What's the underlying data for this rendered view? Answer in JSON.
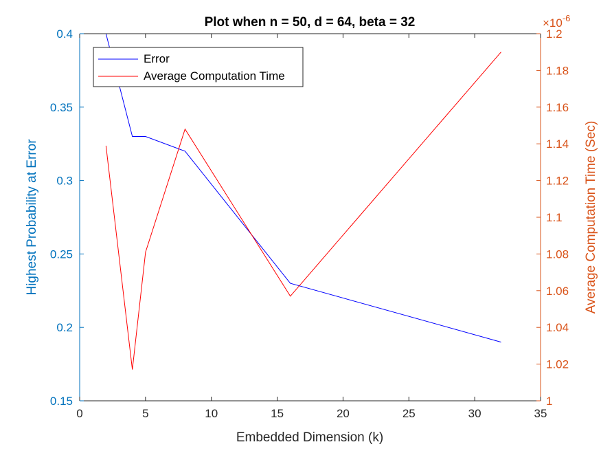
{
  "chart_data": {
    "type": "line",
    "title": "Plot when n = 50, d = 64, beta = 32",
    "xlabel": "Embedded Dimension (k)",
    "ylabel_left": "Highest Probability at Error",
    "ylabel_right": "Average Computation Time (Sec)",
    "right_exponent_base": "×10",
    "right_exponent_power": "-6",
    "xlim": [
      0,
      35
    ],
    "ylim_left": [
      0.15,
      0.4
    ],
    "ylim_right": [
      1.0,
      1.2
    ],
    "x_ticks": [
      0,
      5,
      10,
      15,
      20,
      25,
      30,
      35
    ],
    "y_ticks_left": [
      0.15,
      0.2,
      0.25,
      0.3,
      0.35,
      0.4
    ],
    "y_ticks_right": [
      1,
      1.02,
      1.04,
      1.06,
      1.08,
      1.1,
      1.12,
      1.14,
      1.16,
      1.18,
      1.2
    ],
    "legend_position": "top-left",
    "grid": false,
    "series": [
      {
        "name": "Error",
        "axis": "left",
        "color": "#0000ff",
        "x": [
          2,
          4,
          5,
          8,
          16,
          32
        ],
        "y": [
          0.4,
          0.33,
          0.33,
          0.32,
          0.23,
          0.19
        ]
      },
      {
        "name": "Average Computation Time",
        "axis": "right",
        "color": "#ff0000",
        "x": [
          2,
          4,
          5,
          8,
          16,
          32
        ],
        "y": [
          1.139,
          1.017,
          1.081,
          1.148,
          1.057,
          1.19
        ]
      }
    ],
    "colors": {
      "left_axis": "#0072bd",
      "right_axis": "#d95319",
      "bottom_axis": "#262626"
    }
  }
}
